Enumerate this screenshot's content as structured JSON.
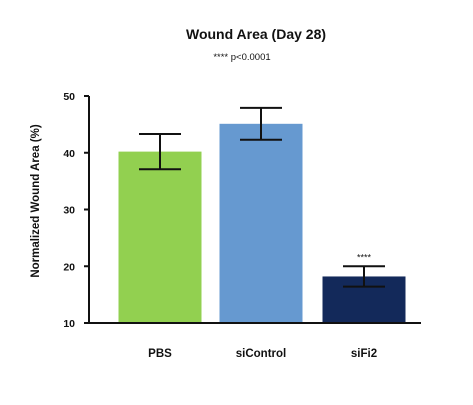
{
  "chart_data": {
    "type": "bar",
    "title": "Wound Area (Day 28)",
    "subtitle": "**** p<0.0001",
    "xlabel": "",
    "ylabel": "Normalized Wound Area (%)",
    "ylim": [
      10,
      50
    ],
    "yticks": [
      "10",
      "20",
      "30",
      "40",
      "50"
    ],
    "grid": false,
    "legend": "none",
    "categories": [
      "PBS",
      "siControl",
      "siFi2"
    ],
    "values": [
      40.2,
      45.1,
      18.2
    ],
    "error": [
      3.1,
      2.8,
      1.8
    ],
    "colors": [
      "#92d050",
      "#6699d0",
      "#13295a"
    ],
    "annotations": [
      "",
      "",
      "****"
    ]
  }
}
